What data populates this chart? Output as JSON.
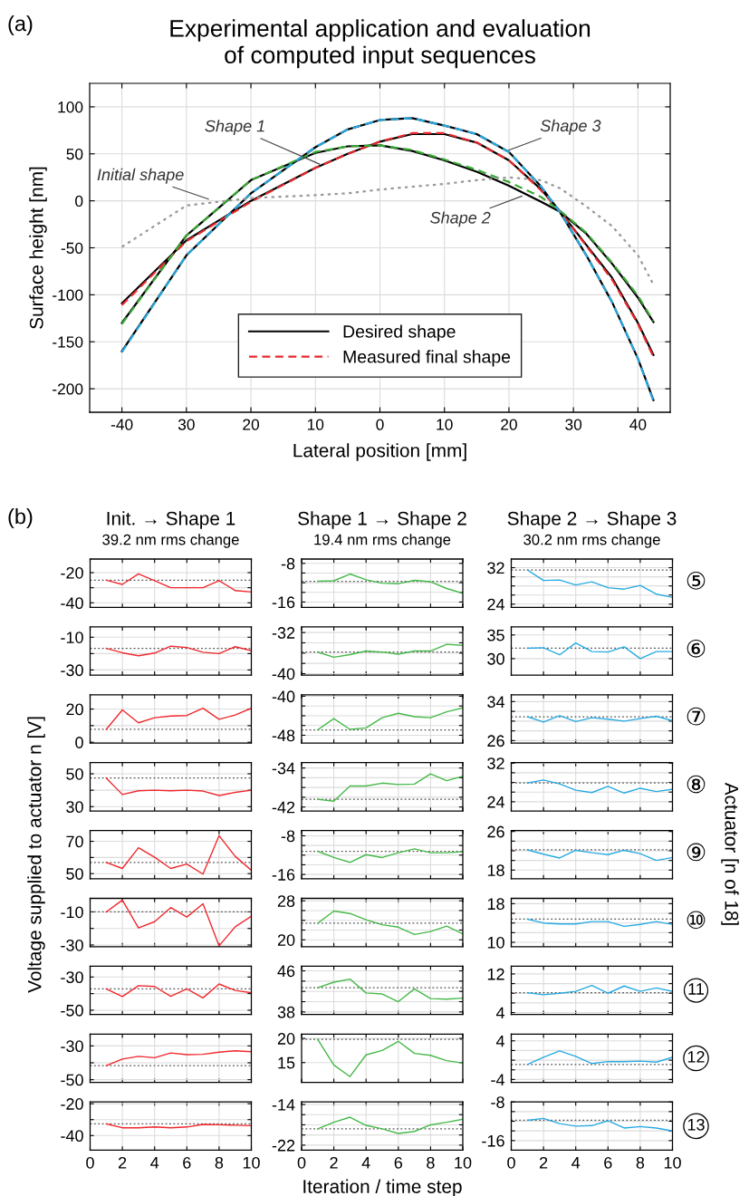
{
  "chart_data": [
    {
      "type": "line",
      "title": "Experimental application and evaluation\nof computed input sequences",
      "xlabel": "Lateral position [mm]",
      "ylabel": "Surface height [nm]",
      "x": [
        -40,
        -30,
        -20,
        -10,
        -5,
        0,
        5,
        10,
        15,
        20,
        25,
        28,
        32,
        36,
        40,
        42.4
      ],
      "series": [
        {
          "name": "Desired shape",
          "color": "#000000",
          "line_style": "solid",
          "values": [
            -109,
            -42,
            0,
            35,
            50,
            63,
            71,
            71,
            62,
            43,
            12,
            -12,
            -47,
            -82,
            -130,
            -164
          ]
        },
        {
          "color": "#000000",
          "line_style": "solid",
          "values": [
            -130,
            -37,
            22,
            51,
            58,
            59,
            53,
            43,
            31,
            16,
            -1,
            -12,
            -35,
            -67,
            -103,
            -129
          ]
        },
        {
          "color": "#000000",
          "line_style": "solid",
          "values": [
            -160,
            -58,
            8,
            57,
            76,
            86,
            88,
            80,
            71,
            52,
            15,
            -13,
            -58,
            -108,
            -168,
            -212
          ]
        },
        {
          "name": "Measured final shape",
          "color": "#e8282d",
          "line_style": "dashed",
          "values": [
            -111,
            -43,
            -1,
            35,
            50,
            63,
            72,
            72,
            62,
            43,
            11,
            -12,
            -48,
            -84,
            -131,
            -166
          ]
        },
        {
          "color": "#3aaa35",
          "line_style": "dashed",
          "values": [
            -131,
            -37,
            22,
            52,
            58,
            59,
            54,
            44,
            33,
            20,
            4,
            -11,
            -34,
            -66,
            -101,
            -128
          ]
        },
        {
          "color": "#27aae1",
          "line_style": "dashed",
          "values": [
            -161,
            -58,
            8,
            57,
            76,
            86,
            88,
            80,
            71,
            52,
            15,
            -13,
            -58,
            -108,
            -168,
            -213
          ]
        },
        {
          "color": "#999999",
          "line_style": "dotted",
          "values": [
            -49,
            -5,
            3,
            6,
            8,
            12,
            15,
            18,
            22,
            25,
            22,
            13,
            -6,
            -27,
            -58,
            -89
          ]
        }
      ],
      "xlim": [
        -45,
        45
      ],
      "ylim": [
        -225,
        125
      ],
      "xticks": [
        -40,
        {
          "value": -30,
          "label": "30"
        },
        {
          "value": -20,
          "label": "20"
        },
        {
          "value": -10,
          "label": "10"
        },
        0,
        10,
        20,
        30,
        40
      ],
      "yticks": [
        -200,
        -150,
        -100,
        -50,
        0,
        50,
        100
      ],
      "grid": true,
      "legend": "bottom",
      "annotations": [
        "(a)",
        {
          "text": "Initial shape",
          "x": -26.2,
          "y": 1
        },
        {
          "text": "Shape 1",
          "x": -9,
          "y": 38
        },
        {
          "text": "Shape 2",
          "x": 22.4,
          "y": 6
        },
        {
          "text": "Shape 3",
          "x": 19.6,
          "y": 53
        }
      ]
    },
    {
      "type": "line",
      "title": "Init. → Shape 1",
      "subtitle": "39.2 nm rms change",
      "ylabel": "Voltage supplied to actuator n [V]",
      "annotations": [
        "(b)"
      ],
      "x": [
        1,
        2,
        3,
        4,
        5,
        6,
        7,
        8,
        9,
        10
      ],
      "series": [
        {
          "color": "#f0282d",
          "values": [
            -25,
            -27.8,
            -20.8,
            -25.3,
            -30,
            -30,
            -30,
            -25.3,
            -31.9,
            -32.8
          ]
        }
      ],
      "xlim": [
        0,
        10
      ],
      "xticks": [
        0,
        2,
        4,
        6,
        8,
        10
      ],
      "ylim": [
        -43,
        -11
      ],
      "yticks": [
        -40,
        {
          "value": -30,
          "label": null
        },
        -20
      ],
      "ref_lines": [
        {
          "axis": "y",
          "value": -25,
          "color": "#555555",
          "line_style": "dotted"
        }
      ],
      "grid": true,
      "tick_labels": "y"
    },
    {
      "type": "line",
      "title": "Shape 1 → Shape 2",
      "subtitle": "19.4 nm rms change",
      "x": [
        1,
        2,
        3,
        4,
        5,
        6,
        7,
        8,
        9,
        10
      ],
      "series": [
        {
          "color": "#46b94a",
          "values": [
            -11.7,
            -11.6,
            -10.2,
            -11.4,
            -12.1,
            -12.2,
            -11.5,
            -11.8,
            -13.2,
            -14.2
          ]
        }
      ],
      "xlim": [
        0,
        10
      ],
      "xticks": [
        0,
        2,
        4,
        6,
        8,
        10
      ],
      "ylim": [
        -17.1,
        -7.1
      ],
      "yticks": [
        -16,
        {
          "value": -14,
          "label": null
        },
        {
          "value": -12,
          "label": null
        },
        {
          "value": -10,
          "label": null
        },
        -8
      ],
      "ref_lines": [
        {
          "axis": "y",
          "value": -11.7,
          "color": "#555555",
          "line_style": "dotted"
        }
      ],
      "grid": true,
      "tick_labels": "y"
    },
    {
      "type": "line",
      "title": "Shape 2 → Shape 3",
      "subtitle": "30.2 nm rms change",
      "annotations": [
        "⑤",
        "Actuator [n of 18]"
      ],
      "x": [
        1,
        2,
        3,
        4,
        5,
        6,
        7,
        8,
        9,
        10
      ],
      "series": [
        {
          "color": "#29aae1",
          "values": [
            31.5,
            29.2,
            29.3,
            28.2,
            28.9,
            27.6,
            27.3,
            28.1,
            26.2,
            25.5
          ]
        }
      ],
      "xlim": [
        0,
        10
      ],
      "xticks": [
        0,
        2,
        4,
        6,
        8,
        10
      ],
      "ylim": [
        23.3,
        33.9
      ],
      "yticks": [
        24,
        {
          "value": 26,
          "label": null
        },
        {
          "value": 28,
          "label": null
        },
        {
          "value": 30,
          "label": null
        },
        32
      ],
      "ref_lines": [
        {
          "axis": "y",
          "value": 31.5,
          "color": "#555555",
          "line_style": "dotted"
        }
      ],
      "grid": true,
      "tick_labels": "y"
    },
    {
      "type": "line",
      "x": [
        1,
        2,
        3,
        4,
        5,
        6,
        7,
        8,
        9,
        10
      ],
      "series": [
        {
          "color": "#f0282d",
          "values": [
            -16.8,
            -19.5,
            -21.3,
            -19.7,
            -15.5,
            -16.3,
            -19.2,
            -20,
            -15.8,
            -18.2
          ]
        }
      ],
      "xlim": [
        0,
        10
      ],
      "xticks": [
        0,
        2,
        4,
        6,
        8,
        10
      ],
      "ylim": [
        -33.2,
        -3.7
      ],
      "yticks": [
        -30,
        {
          "value": -20,
          "label": null
        },
        -10
      ],
      "ref_lines": [
        {
          "axis": "y",
          "value": -16.8,
          "color": "#555555",
          "line_style": "dotted"
        }
      ],
      "grid": true,
      "tick_labels": "y"
    },
    {
      "type": "line",
      "x": [
        1,
        2,
        3,
        4,
        5,
        6,
        7,
        8,
        9,
        10
      ],
      "series": [
        {
          "color": "#46b94a",
          "values": [
            -35.8,
            -36.8,
            -36.3,
            -35.6,
            -35.8,
            -36.2,
            -35.6,
            -35.6,
            -34.3,
            -34.5
          ]
        }
      ],
      "xlim": [
        0,
        10
      ],
      "xticks": [
        0,
        2,
        4,
        6,
        8,
        10
      ],
      "ylim": [
        -40.3,
        -30.9
      ],
      "yticks": [
        -40,
        {
          "value": -38,
          "label": null
        },
        {
          "value": -36,
          "label": null
        },
        {
          "value": -34,
          "label": null
        },
        -32
      ],
      "ref_lines": [
        {
          "axis": "y",
          "value": -35.8,
          "color": "#555555",
          "line_style": "dotted"
        }
      ],
      "grid": true,
      "tick_labels": "y"
    },
    {
      "type": "line",
      "annotations": [
        "⑥"
      ],
      "x": [
        1,
        2,
        3,
        4,
        5,
        6,
        7,
        8,
        9,
        10
      ],
      "series": [
        {
          "color": "#29aae1",
          "values": [
            32.2,
            32.3,
            30.8,
            33.3,
            31.5,
            31.4,
            32.5,
            30,
            31.5,
            31.5
          ]
        }
      ],
      "xlim": [
        0,
        10
      ],
      "xticks": [
        0,
        2,
        4,
        6,
        8,
        10
      ],
      "ylim": [
        26.5,
        36.7
      ],
      "yticks": [
        30,
        35
      ],
      "ref_lines": [
        {
          "axis": "y",
          "value": 32.2,
          "color": "#555555",
          "line_style": "dotted"
        }
      ],
      "grid": true,
      "tick_labels": "y"
    },
    {
      "type": "line",
      "x": [
        1,
        2,
        3,
        4,
        5,
        6,
        7,
        8,
        9,
        10
      ],
      "series": [
        {
          "color": "#f0282d",
          "values": [
            7.8,
            19.5,
            11.7,
            14.8,
            15.8,
            16.1,
            20.5,
            13.8,
            16.4,
            20.5
          ]
        }
      ],
      "xlim": [
        0,
        10
      ],
      "xticks": [
        0,
        2,
        4,
        6,
        8,
        10
      ],
      "ylim": [
        -0.5,
        28.6
      ],
      "yticks": [
        0,
        {
          "value": 10,
          "label": null
        },
        20
      ],
      "ref_lines": [
        {
          "axis": "y",
          "value": 7.8,
          "color": "#555555",
          "line_style": "dotted"
        }
      ],
      "grid": true,
      "tick_labels": "y"
    },
    {
      "type": "line",
      "x": [
        1,
        2,
        3,
        4,
        5,
        6,
        7,
        8,
        9,
        10
      ],
      "series": [
        {
          "color": "#46b94a",
          "values": [
            -46.9,
            -44.6,
            -46.8,
            -46.5,
            -44.4,
            -43.5,
            -44.2,
            -44.4,
            -43.2,
            -42.4
          ]
        }
      ],
      "xlim": [
        0,
        10
      ],
      "xticks": [
        0,
        2,
        4,
        6,
        8,
        10
      ],
      "ylim": [
        -49.6,
        -39.7
      ],
      "yticks": [
        -48,
        {
          "value": -46,
          "label": null
        },
        {
          "value": -44,
          "label": null
        },
        {
          "value": -42,
          "label": null
        },
        -40
      ],
      "ref_lines": [
        {
          "axis": "y",
          "value": -46.9,
          "color": "#555555",
          "line_style": "dotted"
        }
      ],
      "grid": true,
      "tick_labels": "y"
    },
    {
      "type": "line",
      "annotations": [
        "⑦"
      ],
      "x": [
        1,
        2,
        3,
        4,
        5,
        6,
        7,
        8,
        9,
        10
      ],
      "series": [
        {
          "color": "#29aae1",
          "values": [
            30.9,
            29.8,
            31.1,
            29.9,
            30.7,
            30.4,
            30,
            30.5,
            31,
            30.1
          ]
        }
      ],
      "xlim": [
        0,
        10
      ],
      "xticks": [
        0,
        2,
        4,
        6,
        8,
        10
      ],
      "ylim": [
        25.5,
        35.4
      ],
      "yticks": [
        26,
        {
          "value": 28,
          "label": null
        },
        {
          "value": 30,
          "label": null
        },
        {
          "value": 32,
          "label": null
        },
        34
      ],
      "ref_lines": [
        {
          "axis": "y",
          "value": 30.9,
          "color": "#555555",
          "line_style": "dotted"
        }
      ],
      "grid": true,
      "tick_labels": "y"
    },
    {
      "type": "line",
      "x": [
        1,
        2,
        3,
        4,
        5,
        6,
        7,
        8,
        9,
        10
      ],
      "series": [
        {
          "color": "#f0282d",
          "values": [
            47.4,
            37.4,
            39.7,
            40,
            39.7,
            40,
            39.5,
            36.8,
            38.7,
            40
          ]
        }
      ],
      "xlim": [
        0,
        10
      ],
      "xticks": [
        0,
        2,
        4,
        6,
        8,
        10
      ],
      "ylim": [
        27.4,
        56.8
      ],
      "yticks": [
        30,
        {
          "value": 40,
          "label": null
        },
        50
      ],
      "ref_lines": [
        {
          "axis": "y",
          "value": 47.4,
          "color": "#555555",
          "line_style": "dotted"
        }
      ],
      "grid": true,
      "tick_labels": "y"
    },
    {
      "type": "line",
      "x": [
        1,
        2,
        3,
        4,
        5,
        6,
        7,
        8,
        9,
        10
      ],
      "series": [
        {
          "color": "#46b94a",
          "values": [
            -40.4,
            -40.8,
            -37.7,
            -37.7,
            -37.1,
            -37.4,
            -37.3,
            -35.2,
            -36.6,
            -35.7
          ]
        }
      ],
      "xlim": [
        0,
        10
      ],
      "xticks": [
        0,
        2,
        4,
        6,
        8,
        10
      ],
      "ylim": [
        -42.8,
        -32.9
      ],
      "yticks": [
        -42,
        {
          "value": -40,
          "label": null
        },
        {
          "value": -38,
          "label": null
        },
        {
          "value": -36,
          "label": null
        },
        -34
      ],
      "ref_lines": [
        {
          "axis": "y",
          "value": -40.4,
          "color": "#555555",
          "line_style": "dotted"
        }
      ],
      "grid": true,
      "tick_labels": "y"
    },
    {
      "type": "line",
      "annotations": [
        "⑧"
      ],
      "x": [
        1,
        2,
        3,
        4,
        5,
        6,
        7,
        8,
        9,
        10
      ],
      "series": [
        {
          "color": "#29aae1",
          "values": [
            27.9,
            28.5,
            27.7,
            26.4,
            25.9,
            27.2,
            25.8,
            26.8,
            26.1,
            26.6
          ]
        }
      ],
      "xlim": [
        0,
        10
      ],
      "xticks": [
        0,
        2,
        4,
        6,
        8,
        10
      ],
      "ylim": [
        22.1,
        32.1
      ],
      "yticks": [
        24,
        {
          "value": 26,
          "label": null
        },
        {
          "value": 28,
          "label": null
        },
        {
          "value": 30,
          "label": null
        },
        32
      ],
      "ref_lines": [
        {
          "axis": "y",
          "value": 27.9,
          "color": "#555555",
          "line_style": "dotted"
        }
      ],
      "grid": true,
      "tick_labels": "y"
    },
    {
      "type": "line",
      "x": [
        1,
        2,
        3,
        4,
        5,
        6,
        7,
        8,
        9,
        10
      ],
      "series": [
        {
          "color": "#f0282d",
          "values": [
            56.9,
            53.2,
            66,
            60.1,
            53.2,
            55.9,
            49.7,
            73.5,
            60.7,
            52.1
          ]
        }
      ],
      "xlim": [
        0,
        10
      ],
      "xticks": [
        0,
        2,
        4,
        6,
        8,
        10
      ],
      "ylim": [
        46.8,
        76.7
      ],
      "yticks": [
        50,
        {
          "value": 60,
          "label": null
        },
        70
      ],
      "ref_lines": [
        {
          "axis": "y",
          "value": 56.9,
          "color": "#555555",
          "line_style": "dotted"
        }
      ],
      "grid": true,
      "tick_labels": "y"
    },
    {
      "type": "line",
      "x": [
        1,
        2,
        3,
        4,
        5,
        6,
        7,
        8,
        9,
        10
      ],
      "series": [
        {
          "color": "#46b94a",
          "values": [
            -11.2,
            -12.5,
            -13.5,
            -11.9,
            -12.5,
            -11.5,
            -10.7,
            -11.5,
            -11.5,
            -11.3
          ]
        }
      ],
      "xlim": [
        0,
        10
      ],
      "xticks": [
        0,
        2,
        4,
        6,
        8,
        10
      ],
      "ylim": [
        -16.9,
        -6.9
      ],
      "yticks": [
        -16,
        {
          "value": -14,
          "label": null
        },
        {
          "value": -12,
          "label": null
        },
        {
          "value": -10,
          "label": null
        },
        -8
      ],
      "ref_lines": [
        {
          "axis": "y",
          "value": -11.2,
          "color": "#555555",
          "line_style": "dotted"
        }
      ],
      "grid": true,
      "tick_labels": "y"
    },
    {
      "type": "line",
      "annotations": [
        "⑨"
      ],
      "x": [
        1,
        2,
        3,
        4,
        5,
        6,
        7,
        8,
        9,
        10
      ],
      "series": [
        {
          "color": "#29aae1",
          "values": [
            22.2,
            21.3,
            20.5,
            22.1,
            21.6,
            21.2,
            22.1,
            21.4,
            20,
            20.6
          ]
        }
      ],
      "xlim": [
        0,
        10
      ],
      "xticks": [
        0,
        2,
        4,
        6,
        8,
        10
      ],
      "ylim": [
        16.2,
        26.2
      ],
      "yticks": [
        18,
        {
          "value": 20,
          "label": null
        },
        {
          "value": 22,
          "label": null
        },
        {
          "value": 24,
          "label": null
        },
        26
      ],
      "ref_lines": [
        {
          "axis": "y",
          "value": 22.2,
          "color": "#555555",
          "line_style": "dotted"
        }
      ],
      "grid": true,
      "tick_labels": "y"
    },
    {
      "type": "line",
      "x": [
        1,
        2,
        3,
        4,
        5,
        6,
        7,
        8,
        9,
        10
      ],
      "series": [
        {
          "color": "#f0282d",
          "values": [
            -10,
            -2.8,
            -19.7,
            -15.9,
            -7.4,
            -13.1,
            -5.1,
            -30.5,
            -19,
            -12.6
          ]
        }
      ],
      "xlim": [
        0,
        10
      ],
      "xticks": [
        0,
        2,
        4,
        6,
        8,
        10
      ],
      "ylim": [
        -31,
        -1.8
      ],
      "yticks": [
        -30,
        {
          "value": -20,
          "label": null
        },
        -10
      ],
      "ref_lines": [
        {
          "axis": "y",
          "value": -10,
          "color": "#555555",
          "line_style": "dotted"
        }
      ],
      "grid": true,
      "tick_labels": "y"
    },
    {
      "type": "line",
      "x": [
        1,
        2,
        3,
        4,
        5,
        6,
        7,
        8,
        9,
        10
      ],
      "series": [
        {
          "color": "#46b94a",
          "values": [
            23.4,
            25.9,
            25.4,
            24.1,
            23.1,
            22.6,
            21.1,
            21.7,
            22.8,
            21.2
          ]
        }
      ],
      "xlim": [
        0,
        10
      ],
      "xticks": [
        0,
        2,
        4,
        6,
        8,
        10
      ],
      "ylim": [
        18.6,
        28.5
      ],
      "yticks": [
        20,
        {
          "value": 22,
          "label": null
        },
        {
          "value": 24,
          "label": null
        },
        {
          "value": 26,
          "label": null
        },
        28
      ],
      "ref_lines": [
        {
          "axis": "y",
          "value": 23.4,
          "color": "#555555",
          "line_style": "dotted"
        }
      ],
      "grid": true,
      "tick_labels": "y"
    },
    {
      "type": "line",
      "annotations": [
        "⑩"
      ],
      "x": [
        1,
        2,
        3,
        4,
        5,
        6,
        7,
        8,
        9,
        10
      ],
      "series": [
        {
          "color": "#29aae1",
          "values": [
            14.8,
            14,
            13.8,
            13.8,
            14.3,
            14.3,
            13.3,
            13.7,
            14.3,
            13.7
          ]
        }
      ],
      "xlim": [
        0,
        10
      ],
      "xticks": [
        0,
        2,
        4,
        6,
        8,
        10
      ],
      "ylim": [
        9.1,
        19.1
      ],
      "yticks": [
        10,
        {
          "value": 12,
          "label": null
        },
        {
          "value": 14,
          "label": null
        },
        {
          "value": 16,
          "label": null
        },
        18
      ],
      "ref_lines": [
        {
          "axis": "y",
          "value": 14.8,
          "color": "#555555",
          "line_style": "dotted"
        }
      ],
      "grid": true,
      "tick_labels": "y"
    },
    {
      "type": "line",
      "x": [
        1,
        2,
        3,
        4,
        5,
        6,
        7,
        8,
        9,
        10
      ],
      "series": [
        {
          "color": "#f0282d",
          "values": [
            -37.1,
            -41.8,
            -35.2,
            -35.7,
            -41.6,
            -37.1,
            -42.6,
            -34.2,
            -38.1,
            -39.5
          ]
        }
      ],
      "xlim": [
        0,
        10
      ],
      "xticks": [
        0,
        2,
        4,
        6,
        8,
        10
      ],
      "ylim": [
        -52.6,
        -23.5
      ],
      "yticks": [
        -50,
        {
          "value": -40,
          "label": null
        },
        -30
      ],
      "ref_lines": [
        {
          "axis": "y",
          "value": -37.1,
          "color": "#555555",
          "line_style": "dotted"
        }
      ],
      "grid": true,
      "tick_labels": "y"
    },
    {
      "type": "line",
      "x": [
        1,
        2,
        3,
        4,
        5,
        6,
        7,
        8,
        9,
        10
      ],
      "series": [
        {
          "color": "#46b94a",
          "values": [
            42.7,
            43.8,
            44.4,
            41.7,
            41.5,
            40,
            42.5,
            40.6,
            40.5,
            40.7
          ]
        }
      ],
      "xlim": [
        0,
        10
      ],
      "xticks": [
        0,
        2,
        4,
        6,
        8,
        10
      ],
      "ylim": [
        37.5,
        46.9
      ],
      "yticks": [
        38,
        {
          "value": 40,
          "label": null
        },
        {
          "value": 42,
          "label": null
        },
        {
          "value": 44,
          "label": null
        },
        46
      ],
      "ref_lines": [
        {
          "axis": "y",
          "value": 42.7,
          "color": "#555555",
          "line_style": "dotted"
        }
      ],
      "grid": true,
      "tick_labels": "y"
    },
    {
      "type": "line",
      "annotations": [
        "11"
      ],
      "x": [
        1,
        2,
        3,
        4,
        5,
        6,
        7,
        8,
        9,
        10
      ],
      "series": [
        {
          "color": "#29aae1",
          "values": [
            8.1,
            7.7,
            8,
            8.4,
            9.6,
            8,
            9.5,
            8.4,
            9.1,
            8.4
          ]
        }
      ],
      "xlim": [
        0,
        10
      ],
      "xticks": [
        0,
        2,
        4,
        6,
        8,
        10
      ],
      "ylim": [
        3.6,
        13.6
      ],
      "yticks": [
        4,
        {
          "value": 6,
          "label": null
        },
        {
          "value": 8,
          "label": null
        },
        {
          "value": 10,
          "label": null
        },
        12
      ],
      "ref_lines": [
        {
          "axis": "y",
          "value": 8.1,
          "color": "#555555",
          "line_style": "dotted"
        }
      ],
      "grid": true,
      "tick_labels": "y"
    },
    {
      "type": "line",
      "x": [
        1,
        2,
        3,
        4,
        5,
        6,
        7,
        8,
        9,
        10
      ],
      "series": [
        {
          "color": "#f0282d",
          "values": [
            -41.7,
            -37.8,
            -36.2,
            -37,
            -34.2,
            -35.2,
            -35,
            -33.7,
            -32.9,
            -33.4
          ]
        }
      ],
      "xlim": [
        0,
        10
      ],
      "xticks": [
        0,
        2,
        4,
        6,
        8,
        10
      ],
      "ylim": [
        -51.6,
        -23
      ],
      "yticks": [
        -50,
        {
          "value": -40,
          "label": null
        },
        -30
      ],
      "ref_lines": [
        {
          "axis": "y",
          "value": -41.7,
          "color": "#555555",
          "line_style": "dotted"
        }
      ],
      "grid": true,
      "tick_labels": "y"
    },
    {
      "type": "line",
      "x": [
        1,
        2,
        3,
        4,
        5,
        6,
        7,
        8,
        9,
        10
      ],
      "series": [
        {
          "color": "#46b94a",
          "values": [
            19.8,
            14.5,
            12.1,
            16.6,
            17.5,
            19.4,
            16.9,
            16.5,
            15.4,
            14.9
          ]
        }
      ],
      "xlim": [
        0,
        10
      ],
      "xticks": [
        0,
        2,
        4,
        6,
        8,
        10
      ],
      "ylim": [
        10.9,
        20.9
      ],
      "yticks": [
        15,
        20
      ],
      "ref_lines": [
        {
          "axis": "y",
          "value": 19.8,
          "color": "#555555",
          "line_style": "dotted"
        }
      ],
      "grid": true,
      "tick_labels": "y"
    },
    {
      "type": "line",
      "annotations": [
        "12"
      ],
      "x": [
        1,
        2,
        3,
        4,
        5,
        6,
        7,
        8,
        9,
        10
      ],
      "series": [
        {
          "color": "#29aae1",
          "values": [
            -0.9,
            0.6,
            1.9,
            0.8,
            -0.7,
            -0.3,
            -0.3,
            -0.2,
            -0.4,
            0.6
          ]
        }
      ],
      "xlim": [
        0,
        10
      ],
      "xticks": [
        0,
        2,
        4,
        6,
        8,
        10
      ],
      "ylim": [
        -4.6,
        5.4
      ],
      "yticks": [
        -4,
        {
          "value": -2,
          "label": null
        },
        {
          "value": 0,
          "label": null
        },
        {
          "value": 2,
          "label": null
        },
        4
      ],
      "ref_lines": [
        {
          "axis": "y",
          "value": -0.9,
          "color": "#555555",
          "line_style": "dotted"
        }
      ],
      "grid": true,
      "tick_labels": "y"
    },
    {
      "type": "line",
      "x": [
        1,
        2,
        3,
        4,
        5,
        6,
        7,
        8,
        9,
        10
      ],
      "series": [
        {
          "color": "#f0282d",
          "values": [
            -32.7,
            -35.1,
            -35.1,
            -34.6,
            -35.1,
            -34.6,
            -33,
            -33.2,
            -33.5,
            -33.8
          ]
        }
      ],
      "xlim": [
        0,
        10
      ],
      "xticks": [
        0,
        2,
        4,
        6,
        8,
        10
      ],
      "ylim": [
        -49.2,
        -18.9
      ],
      "yticks": [
        -40,
        {
          "value": -30,
          "label": null
        },
        -20
      ],
      "ref_lines": [
        {
          "axis": "y",
          "value": -32.7,
          "color": "#555555",
          "line_style": "dotted"
        }
      ],
      "grid": true
    },
    {
      "type": "line",
      "xlabel": "Iteration / time step",
      "x": [
        1,
        2,
        3,
        4,
        5,
        6,
        7,
        8,
        9,
        10
      ],
      "series": [
        {
          "color": "#46b94a",
          "values": [
            -18.8,
            -17.5,
            -16.5,
            -18.1,
            -18.8,
            -19.7,
            -19.3,
            -18,
            -17.5,
            -16.9
          ]
        }
      ],
      "xlim": [
        0,
        10
      ],
      "xticks": [
        0,
        2,
        4,
        6,
        8,
        10
      ],
      "ylim": [
        -23,
        -13.5
      ],
      "yticks": [
        -22,
        {
          "value": -20,
          "label": null
        },
        {
          "value": -18,
          "label": null
        },
        {
          "value": -16,
          "label": null
        },
        -14
      ],
      "ref_lines": [
        {
          "axis": "y",
          "value": -18.8,
          "color": "#555555",
          "line_style": "dotted"
        }
      ],
      "grid": true
    },
    {
      "type": "line",
      "annotations": [
        "13"
      ],
      "x": [
        1,
        2,
        3,
        4,
        5,
        6,
        7,
        8,
        9,
        10
      ],
      "series": [
        {
          "color": "#29aae1",
          "values": [
            -11.8,
            -11.4,
            -12.5,
            -13,
            -12.9,
            -11.9,
            -13.4,
            -13.1,
            -13.4,
            -14
          ]
        }
      ],
      "xlim": [
        0,
        10
      ],
      "xticks": [
        0,
        2,
        4,
        6,
        8,
        10
      ],
      "ylim": [
        -18,
        -8
      ],
      "yticks": [
        -16,
        {
          "value": -14,
          "label": null
        },
        {
          "value": -12,
          "label": null
        },
        {
          "value": -10,
          "label": null
        },
        -8
      ],
      "ref_lines": [
        {
          "axis": "y",
          "value": -11.8,
          "color": "#555555",
          "line_style": "dotted"
        }
      ],
      "grid": true
    }
  ]
}
